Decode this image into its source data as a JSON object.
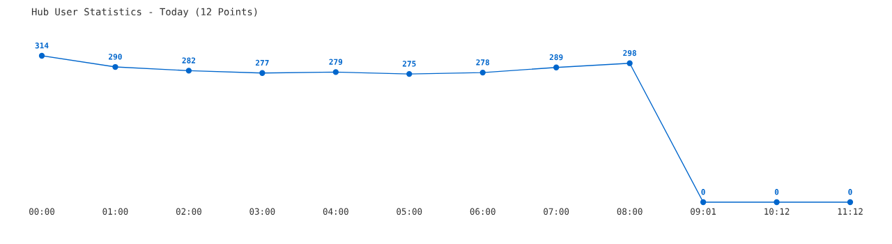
{
  "chart_data": {
    "type": "line",
    "title": "Hub User Statistics - Today (12 Points)",
    "categories": [
      "00:00",
      "01:00",
      "02:00",
      "03:00",
      "04:00",
      "05:00",
      "06:00",
      "07:00",
      "08:00",
      "09:01",
      "10:12",
      "11:12"
    ],
    "series": [
      {
        "color": "#0066cc",
        "values": [
          314,
          290,
          282,
          277,
          279,
          275,
          278,
          289,
          298,
          0,
          0,
          0
        ]
      }
    ],
    "data_labels": true,
    "marker": "circle",
    "line_style": "solid",
    "grid": false,
    "legend": false
  }
}
